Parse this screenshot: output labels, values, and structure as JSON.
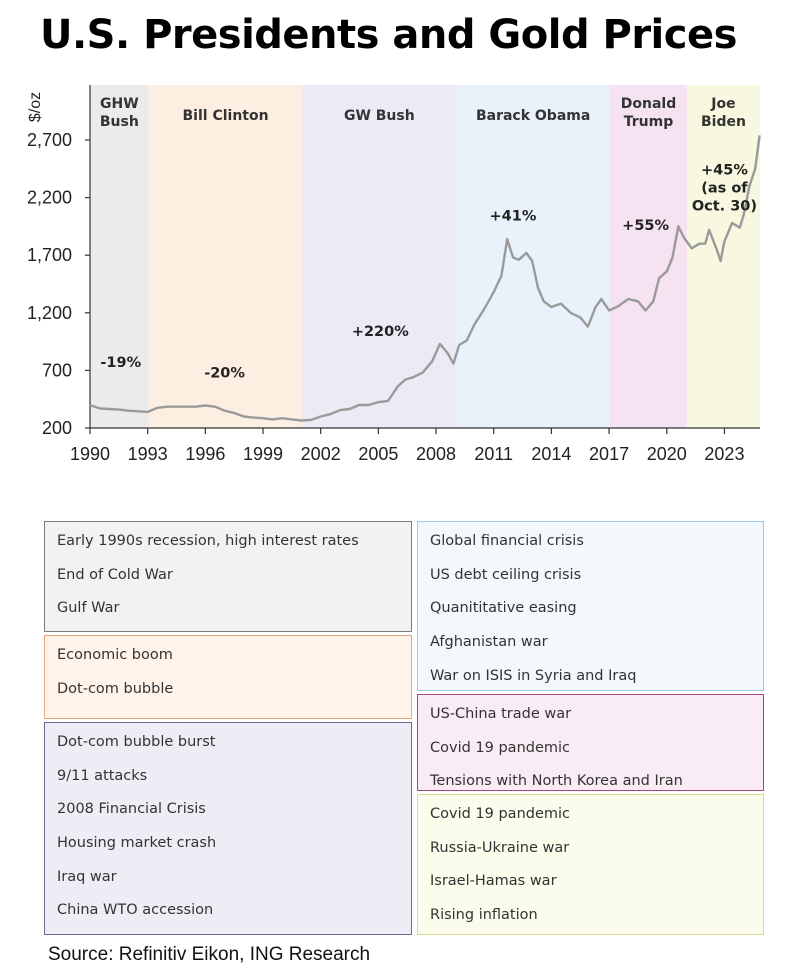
{
  "title": "U.S. Presidents and Gold Prices",
  "source": "Source: Refinitiv Eikon, ING Research",
  "chart_data": {
    "type": "line",
    "title": "U.S. Presidents and Gold Prices",
    "ylabel": "$/oz",
    "xlabel": "",
    "xlim": [
      1990,
      2024.85
    ],
    "ylim": [
      200,
      2700
    ],
    "yticks": [
      200,
      700,
      1200,
      1700,
      2200,
      2700
    ],
    "ytick_labels": [
      "200",
      "700",
      "1,200",
      "1,700",
      "2,200",
      "2,700"
    ],
    "xticks": [
      1990,
      1993,
      1996,
      1999,
      2002,
      2005,
      2008,
      2011,
      2014,
      2017,
      2020,
      2023
    ],
    "grid": false,
    "line_color": "#9a9a9a",
    "series": [
      {
        "x": [
          1990.0,
          1990.5,
          1991.0,
          1991.5,
          1992.0,
          1992.5,
          1993.0,
          1993.5,
          1994.0,
          1994.5,
          1995.0,
          1995.5,
          1996.0,
          1996.5,
          1997.0,
          1997.5,
          1998.0,
          1998.5,
          1999.0,
          1999.5,
          2000.0,
          2000.5,
          2001.0,
          2001.5,
          2002.0,
          2002.5,
          2003.0,
          2003.5,
          2004.0,
          2004.5,
          2005.0,
          2005.5,
          2006.0,
          2006.4,
          2006.8,
          2007.3,
          2007.8,
          2008.2,
          2008.6,
          2008.9,
          2009.2,
          2009.6,
          2010.0,
          2010.5,
          2011.0,
          2011.4,
          2011.7,
          2012.0,
          2012.3,
          2012.7,
          2013.0,
          2013.3,
          2013.6,
          2014.0,
          2014.5,
          2015.0,
          2015.5,
          2015.9,
          2016.3,
          2016.6,
          2017.0,
          2017.5,
          2018.0,
          2018.5,
          2018.9,
          2019.3,
          2019.6,
          2020.0,
          2020.3,
          2020.6,
          2020.9,
          2021.3,
          2021.7,
          2022.0,
          2022.2,
          2022.6,
          2022.8,
          2023.0,
          2023.4,
          2023.8,
          2024.0,
          2024.3,
          2024.6,
          2024.83
        ],
        "values": [
          400,
          370,
          365,
          360,
          350,
          345,
          340,
          375,
          385,
          385,
          385,
          385,
          395,
          385,
          350,
          330,
          300,
          290,
          285,
          275,
          285,
          275,
          265,
          270,
          300,
          320,
          355,
          365,
          400,
          400,
          425,
          435,
          560,
          620,
          640,
          680,
          780,
          930,
          850,
          760,
          920,
          960,
          1100,
          1230,
          1380,
          1520,
          1840,
          1680,
          1660,
          1720,
          1650,
          1420,
          1300,
          1250,
          1280,
          1200,
          1160,
          1080,
          1250,
          1320,
          1220,
          1260,
          1320,
          1300,
          1220,
          1300,
          1500,
          1560,
          1680,
          1950,
          1850,
          1760,
          1800,
          1800,
          1920,
          1750,
          1650,
          1820,
          1980,
          1940,
          2050,
          2300,
          2450,
          2740
        ]
      }
    ],
    "presidents": [
      {
        "name": "GHW Bush",
        "start": 1990.0,
        "end": 1993.05,
        "color": "#ebebeb",
        "change": "-19%",
        "change_x": 1991.6,
        "change_y": 730
      },
      {
        "name": "Bill Clinton",
        "start": 1993.05,
        "end": 2001.05,
        "color": "#fdeee2",
        "change": "-20%",
        "change_x": 1997.0,
        "change_y": 640
      },
      {
        "name": "GW Bush",
        "start": 2001.05,
        "end": 2009.05,
        "color": "#ecebf5",
        "change": "+220%",
        "change_x": 2005.1,
        "change_y": 1000
      },
      {
        "name": "Barack Obama",
        "start": 2009.05,
        "end": 2017.05,
        "color": "#e9f2fb",
        "change": "+41%",
        "change_x": 2012.0,
        "change_y": 2000
      },
      {
        "name": "Donald Trump",
        "start": 2017.05,
        "end": 2021.05,
        "color": "#f6e3f1",
        "change": "+55%",
        "change_x": 2018.9,
        "change_y": 1920
      },
      {
        "name": "Joe Biden",
        "start": 2021.05,
        "end": 2024.85,
        "color": "#f7f8df",
        "change": "+45% (as of Oct. 30)",
        "change_x": 2023.0,
        "change_y": 2400
      }
    ]
  },
  "boxes": [
    {
      "color": "#7b7b7b",
      "bg": "#f2f2f2",
      "items": [
        "Early 1990s recession, high interest rates",
        "End of Cold War",
        "Gulf War"
      ]
    },
    {
      "color": "#e9a779",
      "bg": "#fff3ea",
      "items": [
        "Economic boom",
        "Dot-com bubble"
      ]
    },
    {
      "color": "#6c6a92",
      "bg": "#eeedf5",
      "items": [
        "Dot-com bubble burst",
        "9/11 attacks",
        "2008 Financial Crisis",
        "Housing market crash",
        "Iraq war",
        "China WTO accession"
      ]
    },
    {
      "color": "#9cc7e6",
      "bg": "#f3f8fd",
      "items": [
        "Global financial crisis",
        "US debt ceiling crisis",
        "Quanititative easing",
        "Afghanistan war",
        "War on ISIS in Syria and Iraq"
      ]
    },
    {
      "color": "#a0487f",
      "bg": "#faecf5",
      "items": [
        "US-China trade war",
        "Covid 19 pandemic",
        "Tensions with North Korea and Iran"
      ]
    },
    {
      "color": "#d6dc8c",
      "bg": "#fbfcec",
      "items": [
        "Covid 19 pandemic",
        "Russia-Ukraine war",
        "Israel-Hamas war",
        "Rising inflation"
      ]
    }
  ]
}
